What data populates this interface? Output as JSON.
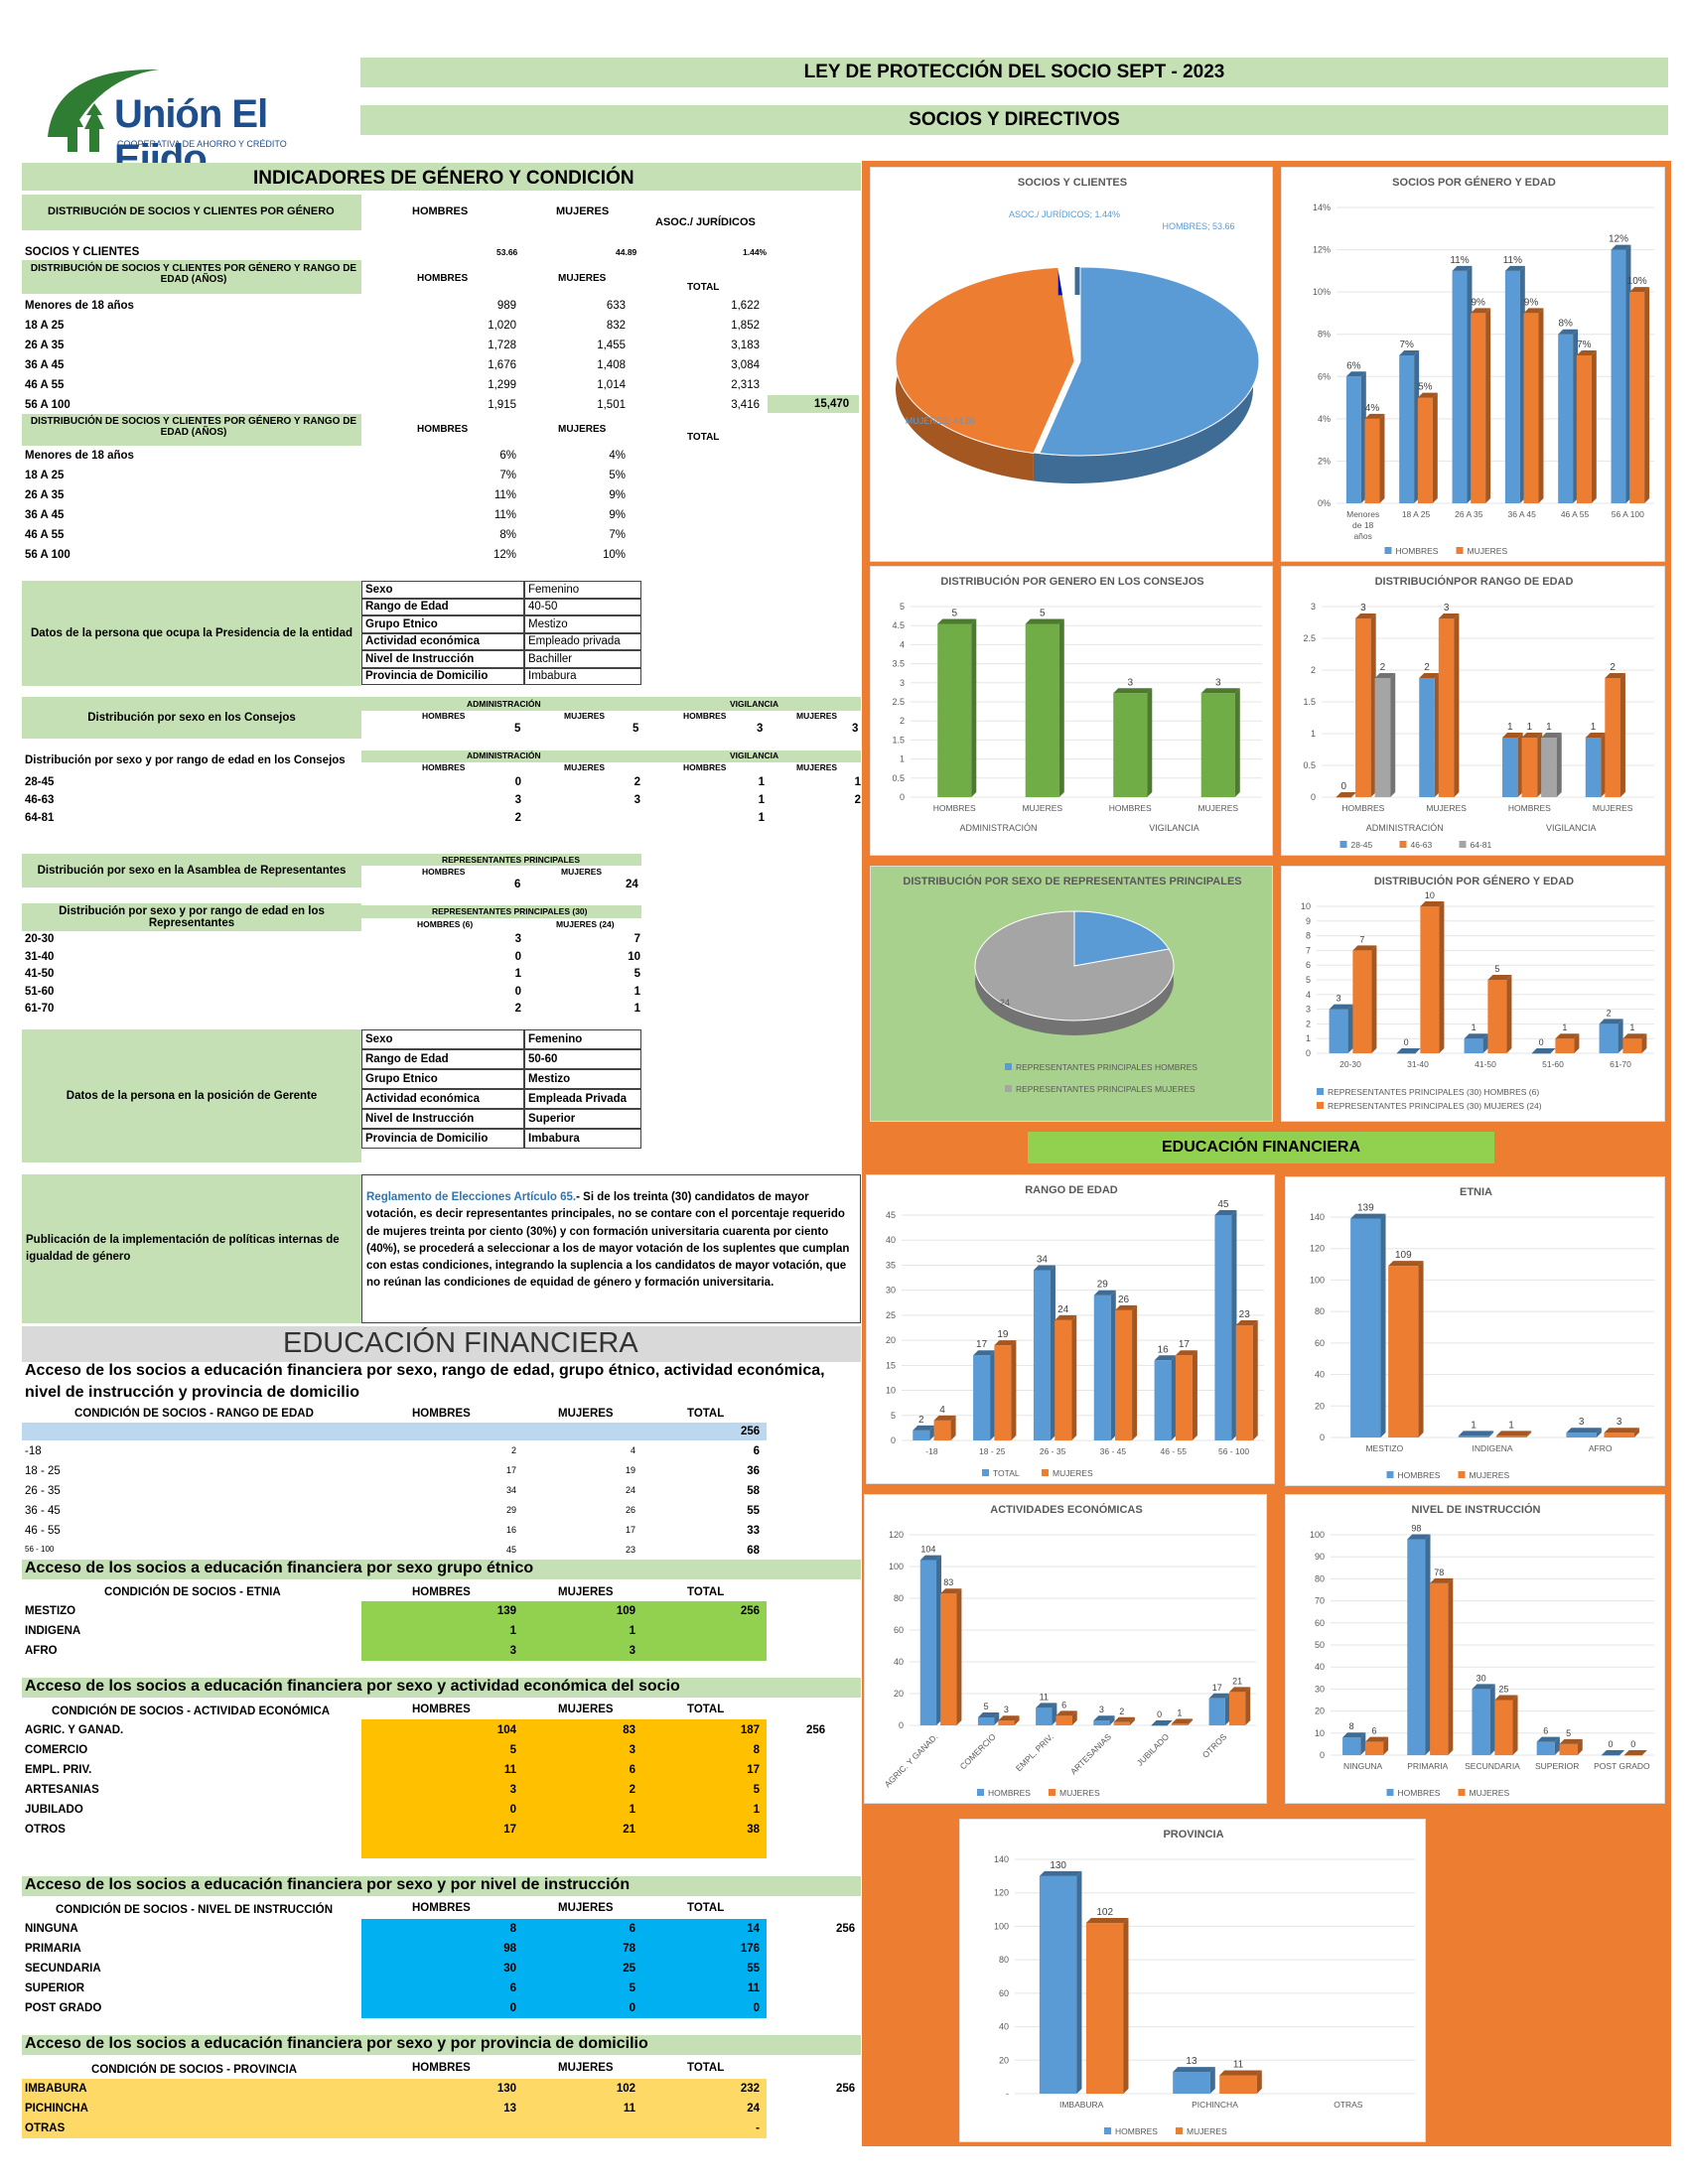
{
  "header": {
    "logo_name": "Unión El Ejido",
    "logo_sub": "COOPERATIVA DE AHORRO Y CRÉDITO",
    "title": "LEY DE PROTECCIÓN DEL SOCIO SEPT - 2023",
    "subtitle": "SOCIOS Y DIRECTIVOS"
  },
  "colors": {
    "green": "#c5e0b4",
    "orange": "#ed7d31",
    "blue": "#5b9bd5",
    "gray": "#a5a5a5",
    "olive": "#70ad47",
    "yellow": "#ffc000",
    "cyan": "#00b0f0",
    "lime": "#92d050",
    "gold": "#ffd966"
  },
  "indicadores": {
    "title": "INDICADORES DE GÉNERO  Y CONDICIÓN",
    "dist_label": "DISTRIBUCIÓN DE SOCIOS Y CLIENTES POR GÉNERO",
    "h_hombres": "HOMBRES",
    "h_mujeres": "MUJERES",
    "h_asoc": "ASOC./ JURÍDICOS",
    "h_total": "TOTAL",
    "socios_label": "SOCIOS Y CLIENTES",
    "socios_h": "53.66",
    "socios_m": "44.89",
    "socios_a": "1.44%",
    "rango_label": "DISTRIBUCIÓN DE SOCIOS Y CLIENTES POR GÉNERO Y RANGO DE EDAD (AÑOS)",
    "rangos": [
      {
        "l": "Menores de 18 años",
        "h": "989",
        "m": "633",
        "t": "1,622"
      },
      {
        "l": "18 A 25",
        "h": "1,020",
        "m": "832",
        "t": "1,852"
      },
      {
        "l": "26 A 35",
        "h": "1,728",
        "m": "1,455",
        "t": "3,183"
      },
      {
        "l": "36 A 45",
        "h": "1,676",
        "m": "1,408",
        "t": "3,084"
      },
      {
        "l": "46 A 55",
        "h": "1,299",
        "m": "1,014",
        "t": "2,313"
      },
      {
        "l": "56 A 100",
        "h": "1,915",
        "m": "1,501",
        "t": "3,416"
      }
    ],
    "grand_total": "15,470",
    "pct": [
      {
        "l": "Menores de 18 años",
        "h": "6%",
        "m": "4%"
      },
      {
        "l": "18 A 25",
        "h": "7%",
        "m": "5%"
      },
      {
        "l": "26 A 35",
        "h": "11%",
        "m": "9%"
      },
      {
        "l": "36 A 45",
        "h": "11%",
        "m": "9%"
      },
      {
        "l": "46 A 55",
        "h": "8%",
        "m": "7%"
      },
      {
        "l": "56 A 100",
        "h": "12%",
        "m": "10%"
      }
    ]
  },
  "presidencia": {
    "label": "Datos de la persona que ocupa la Presidencia de la entidad",
    "rows": [
      [
        "Sexo",
        "Femenino"
      ],
      [
        "Rango de Edad",
        "40-50"
      ],
      [
        "Grupo Etnico",
        "Mestizo"
      ],
      [
        "Actividad económica",
        "Empleado privada"
      ],
      [
        "Nivel de Instrucción",
        "Bachiller"
      ],
      [
        "Provincia de Domicilio",
        "Imbabura"
      ]
    ]
  },
  "consejos": {
    "label": "Distribución por sexo en los Consejos",
    "admin": "ADMINISTRACIÓN",
    "vig": "VIGILANCIA",
    "h": "HOMBRES",
    "m": "MUJERES",
    "vals": [
      "5",
      "5",
      "3",
      "3"
    ],
    "edad_label": "Distribución por sexo y por rango de edad en los Consejos",
    "edad": [
      {
        "l": "28-45",
        "v": [
          "0",
          "2",
          "1",
          "1"
        ]
      },
      {
        "l": "46-63",
        "v": [
          "3",
          "3",
          "1",
          "2"
        ]
      },
      {
        "l": "64-81",
        "v": [
          "2",
          "",
          "1",
          ""
        ]
      }
    ]
  },
  "asamblea": {
    "label": "Distribución por sexo en la Asamblea de Representantes",
    "head": "REPRESENTANTES PRINCIPALES",
    "h": "HOMBRES",
    "m": "MUJERES",
    "vh": "6",
    "vm": "24",
    "edad_label": "Distribución por sexo y por rango de edad en los Representantes",
    "head30": "REPRESENTANTES PRINCIPALES (30)",
    "h6": "HOMBRES (6)",
    "m24": "MUJERES (24)",
    "rows": [
      {
        "l": "20-30",
        "h": "3",
        "m": "7"
      },
      {
        "l": "31-40",
        "h": "0",
        "m": "10"
      },
      {
        "l": "41-50",
        "h": "1",
        "m": "5"
      },
      {
        "l": "51-60",
        "h": "0",
        "m": "1"
      },
      {
        "l": "61-70",
        "h": "2",
        "m": "1"
      }
    ]
  },
  "gerente": {
    "label": "Datos de la persona en la posición de Gerente",
    "rows": [
      [
        "Sexo",
        "Femenino"
      ],
      [
        "Rango de Edad",
        "50-60"
      ],
      [
        "Grupo Etnico",
        "Mestizo"
      ],
      [
        "Actividad económica",
        "Empleada Privada"
      ],
      [
        "Nivel de Instrucción",
        "Superior"
      ],
      [
        "Provincia de Domicilio",
        "Imbabura"
      ]
    ]
  },
  "politicas": {
    "label": "Publicación de la implementación de políticas internas de igualdad de género",
    "link": "Reglamento de Elecciones Artículo 65.",
    "text": "- Si de los treinta (30) candidatos de mayor votación, es decir representantes principales, no se contare con el porcentaje requerido de mujeres treinta por ciento (30%) y con formación universitaria cuarenta por ciento (40%), se procederá a seleccionar a los de mayor votación de los suplentes que cumplan con estas condiciones, integrando la suplencia a los candidatos de mayor votación, que no reúnan las condiciones de equidad de género y formación universitaria."
  },
  "edu": {
    "title": "EDUCACIÓN FINANCIERA",
    "acceso": "Acceso de los socios a educación financiera por sexo, rango de edad, grupo étnico, actividad económica, nivel de instrucción y provincia de domicilio",
    "rango_head": "CONDICIÓN DE SOCIOS - RANGO DE EDAD",
    "h": "HOMBRES",
    "m": "MUJERES",
    "t": "TOTAL",
    "rango_total": "256",
    "rango": [
      {
        "l": "-18",
        "h": "2",
        "m": "4",
        "t": "6"
      },
      {
        "l": "18 - 25",
        "h": "17",
        "m": "19",
        "t": "36"
      },
      {
        "l": "26 - 35",
        "h": "34",
        "m": "24",
        "t": "58"
      },
      {
        "l": "36 - 45",
        "h": "29",
        "m": "26",
        "t": "55"
      },
      {
        "l": "46 - 55",
        "h": "16",
        "m": "17",
        "t": "33"
      },
      {
        "l": "56 - 100",
        "h": "45",
        "m": "23",
        "t": "68"
      }
    ],
    "etnia_title": "Acceso de los socios a educación financiera por sexo grupo étnico",
    "etnia_head": "CONDICIÓN DE SOCIOS - ETNIA",
    "etnia": [
      {
        "l": "MESTIZO",
        "h": "139",
        "m": "109",
        "t": "256"
      },
      {
        "l": "INDIGENA",
        "h": "1",
        "m": "1",
        "t": ""
      },
      {
        "l": "AFRO",
        "h": "3",
        "m": "3",
        "t": ""
      }
    ],
    "act_title": "Acceso de los socios a educación financiera por sexo y actividad económica del socio",
    "act_head": "CONDICIÓN DE SOCIOS - ACTIVIDAD ECONÓMICA",
    "act_total": "256",
    "act": [
      {
        "l": "AGRIC. Y GANAD.",
        "h": "104",
        "m": "83",
        "t": "187"
      },
      {
        "l": "COMERCIO",
        "h": "5",
        "m": "3",
        "t": "8"
      },
      {
        "l": "EMPL. PRIV.",
        "h": "11",
        "m": "6",
        "t": "17"
      },
      {
        "l": "ARTESANIAS",
        "h": "3",
        "m": "2",
        "t": "5"
      },
      {
        "l": "JUBILADO",
        "h": "0",
        "m": "1",
        "t": "1"
      },
      {
        "l": "OTROS",
        "h": "17",
        "m": "21",
        "t": "38"
      }
    ],
    "niv_title": "Acceso de los socios a educación financiera por sexo y por nivel de instrucción",
    "niv_head": "CONDICIÓN DE SOCIOS - NIVEL DE INSTRUCCIÓN",
    "niv_total": "256",
    "niv": [
      {
        "l": "NINGUNA",
        "h": "8",
        "m": "6",
        "t": "14"
      },
      {
        "l": "PRIMARIA",
        "h": "98",
        "m": "78",
        "t": "176"
      },
      {
        "l": "SECUNDARIA",
        "h": "30",
        "m": "25",
        "t": "55"
      },
      {
        "l": "SUPERIOR",
        "h": "6",
        "m": "5",
        "t": "11"
      },
      {
        "l": "POST GRADO",
        "h": "0",
        "m": "0",
        "t": "0"
      }
    ],
    "prov_title": "Acceso de los socios a educación financiera por sexo y por provincia de domicilio",
    "prov_head": "CONDICIÓN DE SOCIOS - PROVINCIA",
    "prov_total": "256",
    "prov": [
      {
        "l": "IMBABURA",
        "h": "130",
        "m": "102",
        "t": "232"
      },
      {
        "l": "PICHINCHA",
        "h": "13",
        "m": "11",
        "t": "24"
      },
      {
        "l": "OTRAS",
        "h": "",
        "m": "",
        "t": "-"
      }
    ]
  },
  "edu_banner": "EDUCACIÓN FINANCIERA",
  "chart_data": [
    {
      "id": "pie1",
      "type": "pie",
      "title": "SOCIOS Y CLIENTES",
      "labels": [
        "HOMBRES; 53.66",
        "MUJERES; 44.89",
        "ASOC./ JURÍDICOS; 1.44%"
      ],
      "values": [
        53.66,
        44.89,
        1.44
      ]
    },
    {
      "id": "c1",
      "type": "bar",
      "title": "SOCIOS POR GÉNERO Y EDAD",
      "categories": [
        "Menores de 18 años",
        "18 A 25",
        "26 A 35",
        "36 A 45",
        "46 A 55",
        "56 A 100"
      ],
      "series": [
        {
          "name": "HOMBRES",
          "values": [
            6,
            7,
            11,
            11,
            8,
            12
          ]
        },
        {
          "name": "MUJERES",
          "values": [
            4,
            5,
            9,
            9,
            7,
            10
          ]
        }
      ],
      "ylim": [
        0,
        14
      ],
      "ticks": [
        "0%",
        "2%",
        "4%",
        "6%",
        "8%",
        "10%",
        "12%",
        "14%"
      ],
      "suffix": "%"
    },
    {
      "id": "c2",
      "type": "bar",
      "title": "DISTRIBUCIÓN POR GENERO EN LOS CONSEJOS",
      "categories": [
        "HOMBRES",
        "MUJERES",
        "HOMBRES",
        "MUJERES"
      ],
      "groups": [
        "ADMINISTRACIÓN",
        "VIGILANCIA"
      ],
      "series": [
        {
          "name": "",
          "values": [
            5,
            5,
            3,
            3
          ]
        }
      ],
      "ylim": [
        0,
        5.5
      ],
      "ticks": [
        "0",
        "0.5",
        "1",
        "1.5",
        "2",
        "2.5",
        "3",
        "3.5",
        "4",
        "4.5",
        "5"
      ]
    },
    {
      "id": "c3",
      "type": "bar",
      "title": "DISTRIBUCIÓNPOR RANGO DE EDAD",
      "categories": [
        "HOMBRES",
        "MUJERES",
        "HOMBRES",
        "MUJERES"
      ],
      "groups": [
        "ADMINISTRACIÓN",
        "VIGILANCIA"
      ],
      "series": [
        {
          "name": "28-45",
          "values": [
            0,
            2,
            1,
            1
          ]
        },
        {
          "name": "46-63",
          "values": [
            3,
            3,
            1,
            2
          ]
        },
        {
          "name": "64-81",
          "values": [
            2,
            null,
            1,
            null
          ]
        }
      ],
      "ylim": [
        0,
        3.2
      ],
      "ticks": [
        "0",
        "0.5",
        "1",
        "1.5",
        "2",
        "2.5",
        "3"
      ]
    },
    {
      "id": "pie2",
      "type": "pie",
      "title": "DISTRIBUCIÓN POR SEXO DE REPRESENTANTES PRINCIPALES",
      "labels": [
        "6",
        "24"
      ],
      "values": [
        6,
        24
      ],
      "legend": [
        "REPRESENTANTES PRINCIPALES HOMBRES",
        "REPRESENTANTES PRINCIPALES MUJERES"
      ]
    },
    {
      "id": "c4",
      "type": "bar",
      "title": "DISTRIBUCIÓN POR GÉNERO Y EDAD",
      "categories": [
        "20-30",
        "31-40",
        "41-50",
        "51-60",
        "61-70"
      ],
      "series": [
        {
          "name": "REPRESENTANTES PRINCIPALES (30) HOMBRES (6)",
          "values": [
            3,
            0,
            1,
            0,
            2
          ]
        },
        {
          "name": "REPRESENTANTES PRINCIPALES (30) MUJERES (24)",
          "values": [
            7,
            10,
            5,
            1,
            1
          ]
        }
      ],
      "ylim": [
        0,
        10
      ],
      "ticks": [
        "0",
        "1",
        "2",
        "3",
        "4",
        "5",
        "6",
        "7",
        "8",
        "9",
        "10"
      ]
    },
    {
      "id": "c5",
      "type": "bar",
      "title": "RANGO DE EDAD",
      "categories": [
        "-18",
        "18 - 25",
        "26 - 35",
        "36 - 45",
        "46 - 55",
        "56 - 100"
      ],
      "series": [
        {
          "name": "TOTAL",
          "values": [
            2,
            17,
            34,
            29,
            16,
            45
          ]
        },
        {
          "name": "MUJERES",
          "values": [
            4,
            19,
            24,
            26,
            17,
            23
          ]
        }
      ],
      "ylim": [
        0,
        45
      ],
      "ticks": [
        "0",
        "5",
        "10",
        "15",
        "20",
        "25",
        "30",
        "35",
        "40",
        "45"
      ]
    },
    {
      "id": "c6",
      "type": "bar",
      "title": "ETNIA",
      "categories": [
        "MESTIZO",
        "INDIGENA",
        "AFRO"
      ],
      "series": [
        {
          "name": "HOMBRES",
          "values": [
            139,
            1,
            3
          ]
        },
        {
          "name": "MUJERES",
          "values": [
            109,
            1,
            3
          ]
        }
      ],
      "ylim": [
        0,
        140
      ],
      "ticks": [
        "0",
        "20",
        "40",
        "60",
        "80",
        "100",
        "120",
        "140"
      ]
    },
    {
      "id": "c7",
      "type": "bar",
      "title": "ACTIVIDADES ECONÓMICAS",
      "categories": [
        "AGRIC. Y GANAD.",
        "COMERCIO",
        "EMPL. PRIV.",
        "ARTESANIAS",
        "JUBILADO",
        "OTROS"
      ],
      "series": [
        {
          "name": "HOMBRES",
          "values": [
            104,
            5,
            11,
            3,
            0,
            17
          ]
        },
        {
          "name": "MUJERES",
          "values": [
            83,
            3,
            6,
            2,
            1,
            21
          ]
        }
      ],
      "ylim": [
        0,
        120
      ],
      "ticks": [
        "0",
        "20",
        "40",
        "60",
        "80",
        "100",
        "120"
      ]
    },
    {
      "id": "c8",
      "type": "bar",
      "title": "NIVEL DE INSTRUCCIÓN",
      "categories": [
        "NINGUNA",
        "PRIMARIA",
        "SECUNDARIA",
        "SUPERIOR",
        "POST GRADO"
      ],
      "series": [
        {
          "name": "HOMBRES",
          "values": [
            8,
            98,
            30,
            6,
            0
          ]
        },
        {
          "name": "MUJERES",
          "values": [
            6,
            78,
            25,
            5,
            0
          ]
        }
      ],
      "ylim": [
        0,
        100
      ],
      "ticks": [
        "0",
        "10",
        "20",
        "30",
        "40",
        "50",
        "60",
        "70",
        "80",
        "90",
        "100"
      ]
    },
    {
      "id": "c9",
      "type": "bar",
      "title": "PROVINCIA",
      "categories": [
        "IMBABURA",
        "PICHINCHA",
        "OTRAS"
      ],
      "series": [
        {
          "name": "HOMBRES",
          "values": [
            130,
            13,
            null
          ]
        },
        {
          "name": "MUJERES",
          "values": [
            102,
            11,
            null
          ]
        }
      ],
      "ylim": [
        0,
        140
      ],
      "ticks": [
        "-",
        "20",
        "40",
        "60",
        "80",
        "100",
        "120",
        "140"
      ]
    }
  ]
}
